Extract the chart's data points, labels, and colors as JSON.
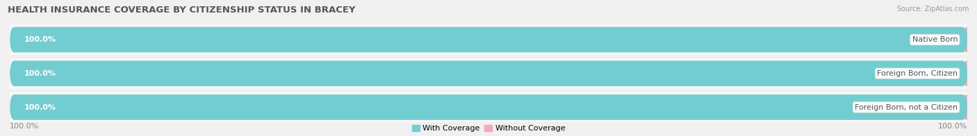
{
  "title": "HEALTH INSURANCE COVERAGE BY CITIZENSHIP STATUS IN BRACEY",
  "source": "Source: ZipAtlas.com",
  "categories": [
    "Native Born",
    "Foreign Born, Citizen",
    "Foreign Born, not a Citizen"
  ],
  "with_coverage": [
    100.0,
    100.0,
    100.0
  ],
  "without_coverage": [
    0.0,
    0.0,
    0.0
  ],
  "color_with": "#72CDD0",
  "color_without": "#F4A8BA",
  "bg_color": "#f0f0f0",
  "bar_bg_color": "#e0e0e0",
  "row_bg_color": "#f7f7f7",
  "title_fontsize": 9.5,
  "label_fontsize": 8,
  "pct_fontsize": 8,
  "tick_fontsize": 8,
  "legend_fontsize": 8,
  "left_tick_label": "100.0%",
  "right_tick_label": "100.0%",
  "legend_with": "With Coverage",
  "legend_without": "Without Coverage"
}
